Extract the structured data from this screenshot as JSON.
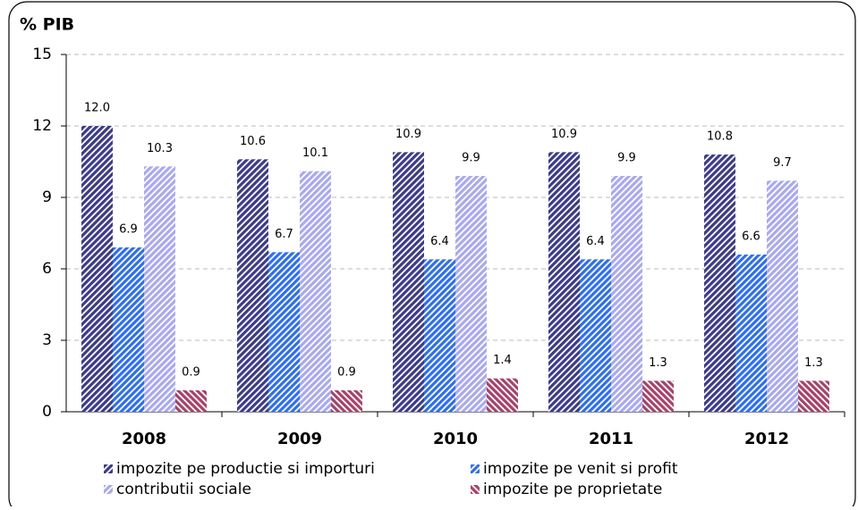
{
  "chart_data": {
    "type": "bar",
    "y_title": "% PIB",
    "categories": [
      "2008",
      "2009",
      "2010",
      "2011",
      "2012"
    ],
    "series": [
      {
        "name": "impozite pe productie si importuri",
        "color": "#3b3b86",
        "values": [
          12.0,
          10.6,
          10.9,
          10.9,
          10.8
        ],
        "value_labels": [
          "12.0",
          "10.6",
          "10.9",
          "10.9",
          "10.8"
        ]
      },
      {
        "name": "impozite pe venit si profit",
        "color": "#2f6fe8",
        "values": [
          6.9,
          6.7,
          6.4,
          6.4,
          6.6
        ],
        "value_labels": [
          "6.9",
          "6.7",
          "6.4",
          "6.4",
          "6.6"
        ]
      },
      {
        "name": "contributii sociale",
        "color": "#a9a9ec",
        "values": [
          10.3,
          10.1,
          9.9,
          9.9,
          9.7
        ],
        "value_labels": [
          "10.3",
          "10.1",
          "9.9",
          "9.9",
          "9.7"
        ]
      },
      {
        "name": "impozite pe proprietate",
        "color": "#a3436b",
        "values": [
          0.9,
          0.9,
          1.4,
          1.3,
          1.3
        ],
        "value_labels": [
          "0.9",
          "0.9",
          "1.4",
          "1.3",
          "1.3"
        ]
      }
    ],
    "ylim": [
      0,
      15
    ],
    "yticks": [
      0,
      3,
      6,
      9,
      12,
      15
    ],
    "grid": true
  }
}
